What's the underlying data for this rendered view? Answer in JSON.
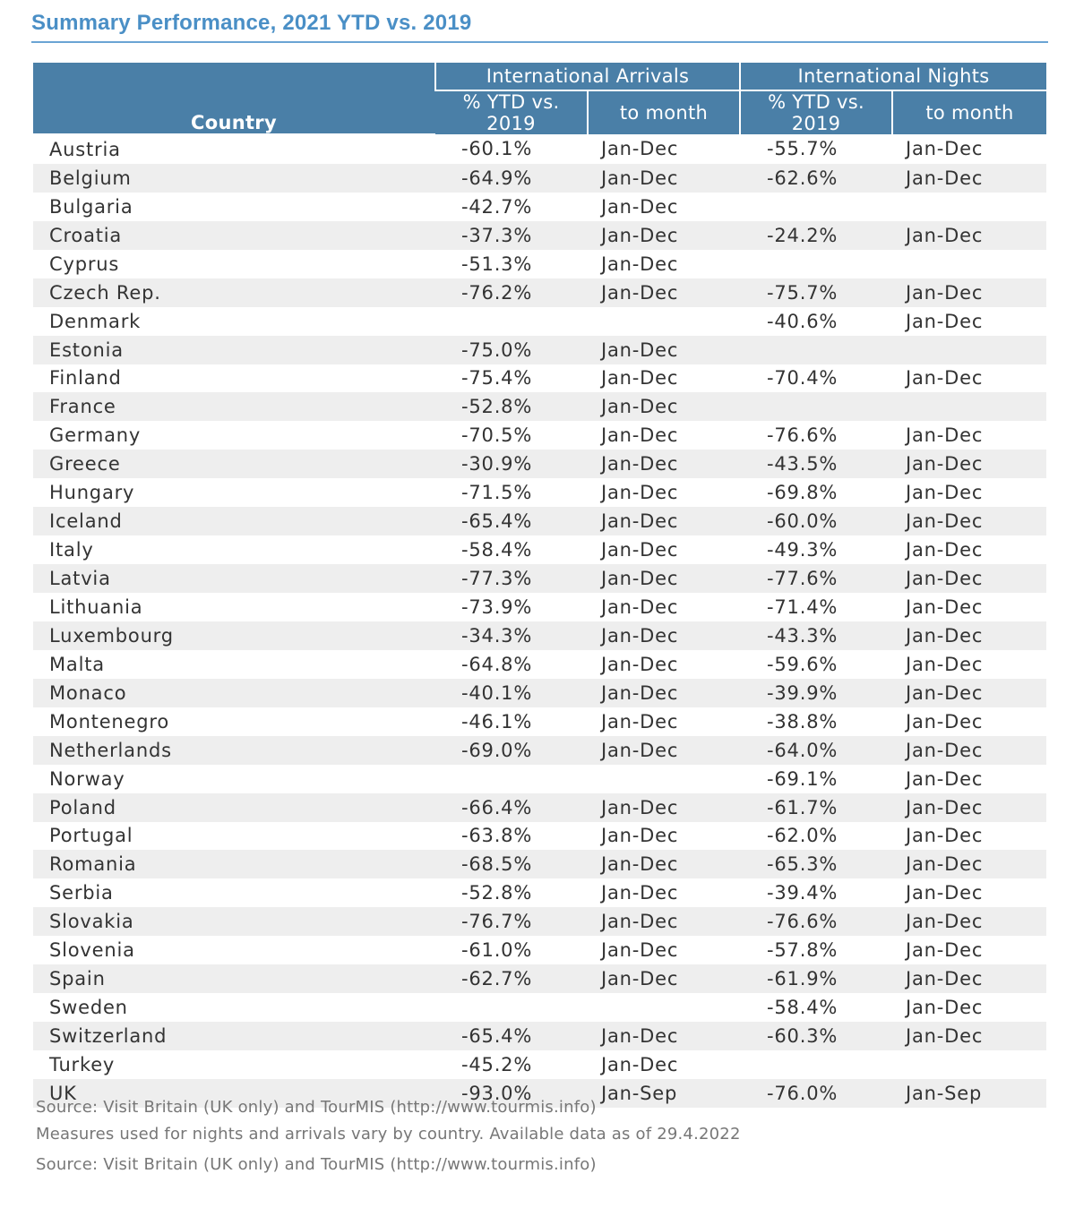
{
  "title": "Summary Performance, 2021 YTD vs. 2019",
  "header": {
    "country": "Country",
    "arrivals_group": "International Arrivals",
    "nights_group": "International Nights",
    "pct_label": "% YTD vs. 2019",
    "month_label": "to month"
  },
  "rows": [
    {
      "country": "Austria",
      "arr_pct": "-60.1%",
      "arr_month": "Jan-Dec",
      "nig_pct": "-55.7%",
      "nig_month": "Jan-Dec"
    },
    {
      "country": "Belgium",
      "arr_pct": "-64.9%",
      "arr_month": "Jan-Dec",
      "nig_pct": "-62.6%",
      "nig_month": "Jan-Dec"
    },
    {
      "country": "Bulgaria",
      "arr_pct": "-42.7%",
      "arr_month": "Jan-Dec",
      "nig_pct": "",
      "nig_month": ""
    },
    {
      "country": "Croatia",
      "arr_pct": "-37.3%",
      "arr_month": "Jan-Dec",
      "nig_pct": "-24.2%",
      "nig_month": "Jan-Dec"
    },
    {
      "country": "Cyprus",
      "arr_pct": "-51.3%",
      "arr_month": "Jan-Dec",
      "nig_pct": "",
      "nig_month": ""
    },
    {
      "country": "Czech Rep.",
      "arr_pct": "-76.2%",
      "arr_month": "Jan-Dec",
      "nig_pct": "-75.7%",
      "nig_month": "Jan-Dec"
    },
    {
      "country": "Denmark",
      "arr_pct": "",
      "arr_month": "",
      "nig_pct": "-40.6%",
      "nig_month": "Jan-Dec"
    },
    {
      "country": "Estonia",
      "arr_pct": "-75.0%",
      "arr_month": "Jan-Dec",
      "nig_pct": "",
      "nig_month": ""
    },
    {
      "country": "Finland",
      "arr_pct": "-75.4%",
      "arr_month": "Jan-Dec",
      "nig_pct": "-70.4%",
      "nig_month": "Jan-Dec"
    },
    {
      "country": "France",
      "arr_pct": "-52.8%",
      "arr_month": "Jan-Dec",
      "nig_pct": "",
      "nig_month": ""
    },
    {
      "country": "Germany",
      "arr_pct": "-70.5%",
      "arr_month": "Jan-Dec",
      "nig_pct": "-76.6%",
      "nig_month": "Jan-Dec"
    },
    {
      "country": "Greece",
      "arr_pct": "-30.9%",
      "arr_month": "Jan-Dec",
      "nig_pct": "-43.5%",
      "nig_month": "Jan-Dec"
    },
    {
      "country": "Hungary",
      "arr_pct": "-71.5%",
      "arr_month": "Jan-Dec",
      "nig_pct": "-69.8%",
      "nig_month": "Jan-Dec"
    },
    {
      "country": "Iceland",
      "arr_pct": "-65.4%",
      "arr_month": "Jan-Dec",
      "nig_pct": "-60.0%",
      "nig_month": "Jan-Dec"
    },
    {
      "country": "Italy",
      "arr_pct": "-58.4%",
      "arr_month": "Jan-Dec",
      "nig_pct": "-49.3%",
      "nig_month": "Jan-Dec"
    },
    {
      "country": "Latvia",
      "arr_pct": "-77.3%",
      "arr_month": "Jan-Dec",
      "nig_pct": "-77.6%",
      "nig_month": "Jan-Dec"
    },
    {
      "country": "Lithuania",
      "arr_pct": "-73.9%",
      "arr_month": "Jan-Dec",
      "nig_pct": "-71.4%",
      "nig_month": "Jan-Dec"
    },
    {
      "country": "Luxembourg",
      "arr_pct": "-34.3%",
      "arr_month": "Jan-Dec",
      "nig_pct": "-43.3%",
      "nig_month": "Jan-Dec"
    },
    {
      "country": "Malta",
      "arr_pct": "-64.8%",
      "arr_month": "Jan-Dec",
      "nig_pct": "-59.6%",
      "nig_month": "Jan-Dec"
    },
    {
      "country": "Monaco",
      "arr_pct": "-40.1%",
      "arr_month": "Jan-Dec",
      "nig_pct": "-39.9%",
      "nig_month": "Jan-Dec"
    },
    {
      "country": "Montenegro",
      "arr_pct": "-46.1%",
      "arr_month": "Jan-Dec",
      "nig_pct": "-38.8%",
      "nig_month": "Jan-Dec"
    },
    {
      "country": "Netherlands",
      "arr_pct": "-69.0%",
      "arr_month": "Jan-Dec",
      "nig_pct": "-64.0%",
      "nig_month": "Jan-Dec"
    },
    {
      "country": "Norway",
      "arr_pct": "",
      "arr_month": "",
      "nig_pct": "-69.1%",
      "nig_month": "Jan-Dec"
    },
    {
      "country": "Poland",
      "arr_pct": "-66.4%",
      "arr_month": "Jan-Dec",
      "nig_pct": "-61.7%",
      "nig_month": "Jan-Dec"
    },
    {
      "country": "Portugal",
      "arr_pct": "-63.8%",
      "arr_month": "Jan-Dec",
      "nig_pct": "-62.0%",
      "nig_month": "Jan-Dec"
    },
    {
      "country": "Romania",
      "arr_pct": "-68.5%",
      "arr_month": "Jan-Dec",
      "nig_pct": "-65.3%",
      "nig_month": "Jan-Dec"
    },
    {
      "country": "Serbia",
      "arr_pct": "-52.8%",
      "arr_month": "Jan-Dec",
      "nig_pct": "-39.4%",
      "nig_month": "Jan-Dec"
    },
    {
      "country": "Slovakia",
      "arr_pct": "-76.7%",
      "arr_month": "Jan-Dec",
      "nig_pct": "-76.6%",
      "nig_month": "Jan-Dec"
    },
    {
      "country": "Slovenia",
      "arr_pct": "-61.0%",
      "arr_month": "Jan-Dec",
      "nig_pct": "-57.8%",
      "nig_month": "Jan-Dec"
    },
    {
      "country": "Spain",
      "arr_pct": "-62.7%",
      "arr_month": "Jan-Dec",
      "nig_pct": "-61.9%",
      "nig_month": "Jan-Dec"
    },
    {
      "country": "Sweden",
      "arr_pct": "",
      "arr_month": "",
      "nig_pct": "-58.4%",
      "nig_month": "Jan-Dec"
    },
    {
      "country": "Switzerland",
      "arr_pct": "-65.4%",
      "arr_month": "Jan-Dec",
      "nig_pct": "-60.3%",
      "nig_month": "Jan-Dec"
    },
    {
      "country": "Turkey",
      "arr_pct": "-45.2%",
      "arr_month": "Jan-Dec",
      "nig_pct": "",
      "nig_month": ""
    },
    {
      "country": "UK",
      "arr_pct": "-93.0%",
      "arr_month": "Jan-Sep",
      "nig_pct": "-76.0%",
      "nig_month": "Jan-Sep"
    }
  ],
  "notes": [
    "Source: Visit Britain (UK only) and TourMIS (http://www.tourmis.info)",
    "Measures used for nights and arrivals vary by country. Available data as of 29.4.2022",
    "Source: Visit Britain (UK only) and TourMIS (http://www.tourmis.info)"
  ],
  "colors": {
    "title": "#4a8fc6",
    "header_bg": "#4a7fa7",
    "stripe": "#eeeeee"
  }
}
